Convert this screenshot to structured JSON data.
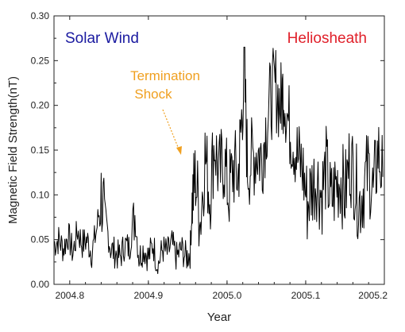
{
  "chart_data": {
    "type": "line",
    "xlabel": "Year",
    "ylabel": "Magnetic Field Strength(nT)",
    "xlim": [
      2004.78,
      2005.2
    ],
    "ylim": [
      0.0,
      0.3
    ],
    "x_ticks": [
      "2004.8",
      "2004.9",
      "2005.0",
      "2005.1",
      "2005.2"
    ],
    "y_ticks": [
      "0.00",
      "0.05",
      "0.10",
      "0.15",
      "0.20",
      "0.25",
      "0.30"
    ],
    "x_tick_values": [
      2004.8,
      2004.9,
      2005.0,
      2005.1,
      2005.2
    ],
    "y_tick_values": [
      0.0,
      0.05,
      0.1,
      0.15,
      0.2,
      0.25,
      0.3
    ],
    "grid": false,
    "colors": {
      "series": "#000000",
      "solar_wind_label": "#1a1aa0",
      "heliosheath_label": "#e0202a",
      "annotation": "#f0a020"
    },
    "annotations": {
      "solar_wind": "Solar Wind",
      "heliosheath": "Heliosheath",
      "termination_line1": "Termination",
      "termination_line2": "Shock"
    },
    "series": [
      {
        "x": [
          2004.78,
          2004.786,
          2004.792,
          2004.798,
          2004.804,
          2004.81,
          2004.816,
          2004.822,
          2004.828,
          2004.834,
          2004.84,
          2004.846,
          2004.852,
          2004.858,
          2004.864,
          2004.87,
          2004.876,
          2004.882,
          2004.888,
          2004.894,
          2004.9,
          2004.906,
          2004.912,
          2004.918,
          2004.924,
          2004.93,
          2004.936,
          2004.942,
          2004.948,
          2004.953,
          2004.956,
          2004.96,
          2004.966,
          2004.972,
          2004.978,
          2004.984,
          2004.99,
          2004.996,
          2005.002,
          2005.008,
          2005.014,
          2005.018,
          2005.022,
          2005.026,
          2005.032,
          2005.038,
          2005.044,
          2005.05,
          2005.056,
          2005.062,
          2005.068,
          2005.072,
          2005.078,
          2005.084,
          2005.09,
          2005.096,
          2005.102,
          2005.108,
          2005.114,
          2005.12,
          2005.126,
          2005.132,
          2005.138,
          2005.144,
          2005.15,
          2005.156,
          2005.162,
          2005.168,
          2005.174,
          2005.18,
          2005.186,
          2005.192,
          2005.198
        ],
        "y": [
          0.045,
          0.05,
          0.04,
          0.055,
          0.035,
          0.06,
          0.045,
          0.05,
          0.035,
          0.06,
          0.1,
          0.07,
          0.04,
          0.035,
          0.03,
          0.045,
          0.04,
          0.085,
          0.03,
          0.04,
          0.03,
          0.045,
          0.02,
          0.04,
          0.035,
          0.045,
          0.03,
          0.04,
          0.03,
          0.035,
          0.095,
          0.12,
          0.07,
          0.145,
          0.1,
          0.16,
          0.12,
          0.14,
          0.1,
          0.13,
          0.12,
          0.175,
          0.24,
          0.13,
          0.14,
          0.15,
          0.14,
          0.18,
          0.21,
          0.22,
          0.2,
          0.22,
          0.18,
          0.165,
          0.14,
          0.13,
          0.09,
          0.11,
          0.12,
          0.1,
          0.13,
          0.09,
          0.11,
          0.12,
          0.1,
          0.14,
          0.12,
          0.09,
          0.11,
          0.13,
          0.1,
          0.15,
          0.12
        ]
      }
    ]
  }
}
